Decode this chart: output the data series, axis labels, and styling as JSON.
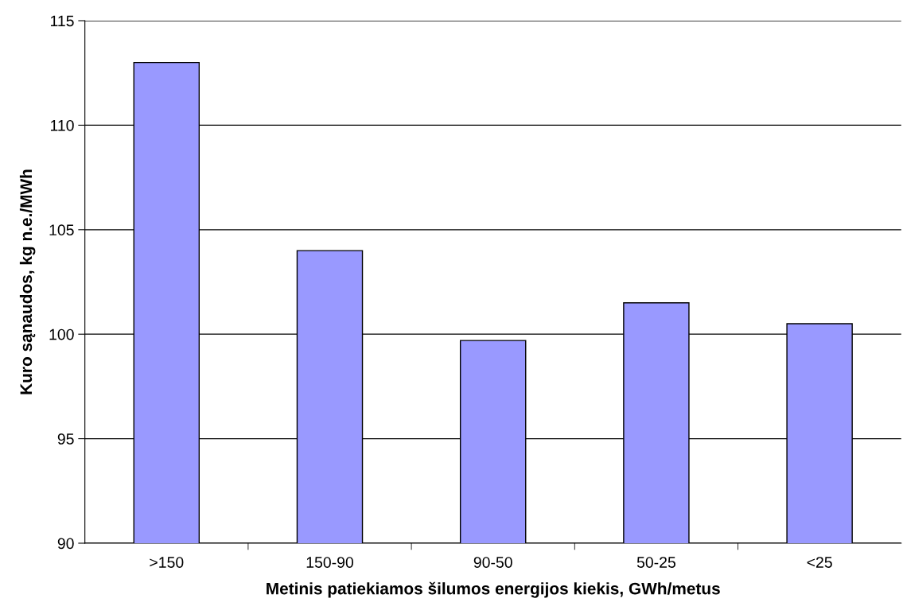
{
  "chart_data": {
    "type": "bar",
    "xlabel": "Metinis patiekiamos šilumos energijos kiekis, GWh/metus",
    "ylabel": "Kuro sąnaudos, kg n.e./MWh",
    "categories": [
      ">150",
      "150-90",
      "90-50",
      "50-25",
      "<25"
    ],
    "values": [
      113,
      104,
      99.7,
      101.5,
      100.5
    ],
    "color": "#9999ff",
    "ylim": [
      90,
      115
    ],
    "yticks": [
      90,
      95,
      100,
      105,
      110,
      115
    ],
    "grid": "y"
  }
}
